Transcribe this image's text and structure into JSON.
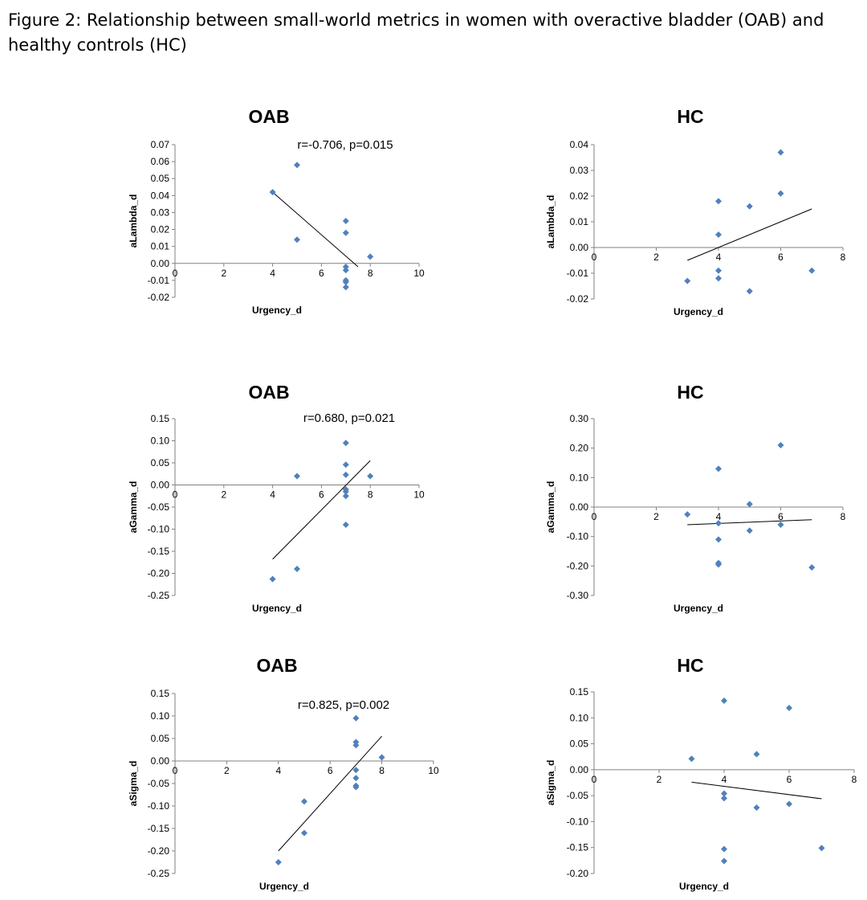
{
  "caption": "Figure 2: Relationship between small-world metrics in women with overactive bladder (OAB) and healthy controls (HC)",
  "colors": {
    "marker": "#4f81bd",
    "axis": "#808080",
    "trendline": "#000000"
  },
  "chart_data": [
    {
      "type": "scatter",
      "title": "OAB",
      "xlabel": "Urgency_d",
      "ylabel": "aLambda_d",
      "annotation": "r=-0.706, p=0.015",
      "xlim": [
        0,
        10
      ],
      "ylim": [
        -0.02,
        0.07
      ],
      "xticks": [
        0,
        2,
        4,
        6,
        8,
        10
      ],
      "xtick_labels": [
        "0",
        "2",
        "4",
        "6",
        "8",
        "10"
      ],
      "yticks": [
        -0.02,
        -0.01,
        0,
        0.01,
        0.02,
        0.03,
        0.04,
        0.05,
        0.06,
        0.07
      ],
      "ytick_labels": [
        "-0.02",
        "-0.01",
        "0.00",
        "0.01",
        "0.02",
        "0.03",
        "0.04",
        "0.05",
        "0.06",
        "0.07"
      ],
      "points": [
        [
          4,
          0.042
        ],
        [
          5,
          0.058
        ],
        [
          5,
          0.014
        ],
        [
          7,
          0.025
        ],
        [
          7,
          0.018
        ],
        [
          7,
          -0.002
        ],
        [
          7,
          -0.004
        ],
        [
          7,
          -0.01
        ],
        [
          7,
          -0.011
        ],
        [
          7,
          -0.014
        ],
        [
          8,
          0.004
        ]
      ],
      "trendline": [
        [
          4,
          0.042
        ],
        [
          7.5,
          -0.002
        ]
      ]
    },
    {
      "type": "scatter",
      "title": "HC",
      "xlabel": "Urgency_d",
      "ylabel": "aLambda_d",
      "xlim": [
        0,
        8
      ],
      "ylim": [
        -0.02,
        0.04
      ],
      "xticks": [
        0,
        2,
        4,
        6,
        8
      ],
      "xtick_labels": [
        "0",
        "2",
        "4",
        "6",
        "8"
      ],
      "yticks": [
        -0.02,
        -0.01,
        0,
        0.01,
        0.02,
        0.03,
        0.04
      ],
      "ytick_labels": [
        "-0.02",
        "-0.01",
        "0.00",
        "0.01",
        "0.02",
        "0.03",
        "0.04"
      ],
      "points": [
        [
          3,
          -0.013
        ],
        [
          4,
          0.018
        ],
        [
          4,
          0.005
        ],
        [
          4,
          -0.009
        ],
        [
          4,
          -0.012
        ],
        [
          5,
          0.016
        ],
        [
          5,
          -0.017
        ],
        [
          6,
          0.037
        ],
        [
          6,
          0.021
        ],
        [
          7,
          -0.009
        ]
      ],
      "trendline": [
        [
          3,
          -0.005
        ],
        [
          7,
          0.015
        ]
      ]
    },
    {
      "type": "scatter",
      "title": "OAB",
      "xlabel": "Urgency_d",
      "ylabel": "aGamma_d",
      "annotation": "r=0.680, p=0.021",
      "xlim": [
        0,
        10
      ],
      "ylim": [
        -0.25,
        0.15
      ],
      "xticks": [
        0,
        2,
        4,
        6,
        8,
        10
      ],
      "xtick_labels": [
        "0",
        "2",
        "4",
        "6",
        "8",
        "10"
      ],
      "yticks": [
        -0.25,
        -0.2,
        -0.15,
        -0.1,
        -0.05,
        0,
        0.05,
        0.1,
        0.15
      ],
      "ytick_labels": [
        "-0.25",
        "-0.20",
        "-0.15",
        "-0.10",
        "-0.05",
        "0.00",
        "0.05",
        "0.10",
        "0.15"
      ],
      "points": [
        [
          4,
          -0.213
        ],
        [
          5,
          0.02
        ],
        [
          5,
          -0.19
        ],
        [
          7,
          0.095
        ],
        [
          7,
          0.046
        ],
        [
          7,
          0.023
        ],
        [
          7,
          -0.01
        ],
        [
          7,
          -0.015
        ],
        [
          7,
          -0.025
        ],
        [
          7,
          -0.09
        ],
        [
          8,
          0.02
        ]
      ],
      "trendline": [
        [
          4,
          -0.168
        ],
        [
          8,
          0.055
        ]
      ]
    },
    {
      "type": "scatter",
      "title": "HC",
      "xlabel": "Urgency_d",
      "ylabel": "aGamma_d",
      "xlim": [
        0,
        8
      ],
      "ylim": [
        -0.3,
        0.3
      ],
      "xticks": [
        0,
        2,
        4,
        6,
        8
      ],
      "xtick_labels": [
        "0",
        "2",
        "4",
        "6",
        "8"
      ],
      "yticks": [
        -0.3,
        -0.2,
        -0.1,
        0,
        0.1,
        0.2,
        0.3
      ],
      "ytick_labels": [
        "-0.30",
        "-0.20",
        "-0.10",
        "0.00",
        "0.10",
        "0.20",
        "0.30"
      ],
      "points": [
        [
          3,
          -0.025
        ],
        [
          4,
          0.13
        ],
        [
          4,
          -0.055
        ],
        [
          4,
          -0.11
        ],
        [
          4,
          -0.19
        ],
        [
          4,
          -0.195
        ],
        [
          5,
          0.01
        ],
        [
          5,
          -0.08
        ],
        [
          6,
          0.21
        ],
        [
          6,
          -0.06
        ],
        [
          7,
          -0.205
        ]
      ],
      "trendline": [
        [
          3,
          -0.06
        ],
        [
          7,
          -0.043
        ]
      ]
    },
    {
      "type": "scatter",
      "title": "OAB",
      "xlabel": "Urgency_d",
      "ylabel": "aSigma_d",
      "annotation": "r=0.825, p=0.002",
      "xlim": [
        0,
        10
      ],
      "ylim": [
        -0.25,
        0.15
      ],
      "xticks": [
        0,
        2,
        4,
        6,
        8,
        10
      ],
      "xtick_labels": [
        "0",
        "2",
        "4",
        "6",
        "8",
        "10"
      ],
      "yticks": [
        -0.25,
        -0.2,
        -0.15,
        -0.1,
        -0.05,
        0,
        0.05,
        0.1,
        0.15
      ],
      "ytick_labels": [
        "-0.25",
        "-0.20",
        "-0.15",
        "-0.10",
        "-0.05",
        "0.00",
        "0.05",
        "0.10",
        "0.15"
      ],
      "points": [
        [
          4,
          -0.225
        ],
        [
          5,
          -0.09
        ],
        [
          5,
          -0.16
        ],
        [
          7,
          0.095
        ],
        [
          7,
          0.042
        ],
        [
          7,
          0.035
        ],
        [
          7,
          -0.02
        ],
        [
          7,
          -0.038
        ],
        [
          7,
          -0.055
        ],
        [
          7,
          -0.058
        ],
        [
          8,
          0.008
        ]
      ],
      "trendline": [
        [
          4,
          -0.2
        ],
        [
          8,
          0.055
        ]
      ]
    },
    {
      "type": "scatter",
      "title": "HC",
      "xlabel": "Urgency_d",
      "ylabel": "aSigma_d",
      "xlim": [
        0,
        8
      ],
      "ylim": [
        -0.2,
        0.15
      ],
      "xticks": [
        0,
        2,
        4,
        6,
        8
      ],
      "xtick_labels": [
        "0",
        "2",
        "4",
        "6",
        "8"
      ],
      "yticks": [
        -0.2,
        -0.15,
        -0.1,
        -0.05,
        0,
        0.05,
        0.1,
        0.15
      ],
      "ytick_labels": [
        "-0.20",
        "-0.15",
        "-0.10",
        "-0.05",
        "0.00",
        "0.05",
        "0.10",
        "0.15"
      ],
      "points": [
        [
          3,
          0.021
        ],
        [
          4,
          0.133
        ],
        [
          4,
          -0.046
        ],
        [
          4,
          -0.055
        ],
        [
          4,
          -0.153
        ],
        [
          4,
          -0.176
        ],
        [
          5,
          0.03
        ],
        [
          5,
          -0.073
        ],
        [
          6,
          0.119
        ],
        [
          6,
          -0.066
        ],
        [
          7,
          -0.151
        ]
      ],
      "trendline": [
        [
          3,
          -0.024
        ],
        [
          7,
          -0.056
        ]
      ]
    }
  ]
}
